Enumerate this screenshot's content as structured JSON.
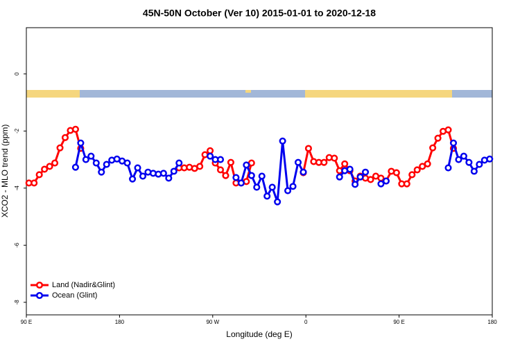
{
  "chart_data": {
    "type": "line",
    "title": "45N-50N October (Ver 10)   2015-01-01 to 2020-12-18",
    "x_label": "Longitude (deg E)",
    "y_label": "XCO2 - MLO trend (ppm)",
    "xlim": [
      90,
      540
    ],
    "xticks": [
      {
        "value": 90,
        "label": "90 E"
      },
      180,
      {
        "value": 270,
        "label": "90 W"
      },
      {
        "value": 360,
        "label": "0"
      },
      {
        "value": 450,
        "label": "90 E"
      },
      {
        "value": 540,
        "label": "180"
      }
    ],
    "ylim": [
      -8.44,
      1.62
    ],
    "yticks": [
      0,
      -2,
      -4,
      -6,
      -8
    ],
    "legend": "bottom-left",
    "series": [
      {
        "name": "Land (Nadir&Glint)",
        "color": "#ff0000",
        "x": [
          92.5,
          97.5,
          102.5,
          107.5,
          112.5,
          117.5,
          122.5,
          127.5,
          132.5,
          137.5,
          142.5,
          147.5,
          237.5,
          242.5,
          247.5,
          252.5,
          257.5,
          262.5,
          267.5,
          272.5,
          277.5,
          282.5,
          287.5,
          292.5,
          297.5,
          302.5,
          307.5,
          312.5,
          357.5,
          362.5,
          367.5,
          372.5,
          377.5,
          382.5,
          387.5,
          392.5,
          397.5,
          402.5,
          407.5,
          412.5,
          417.5,
          422.5,
          427.5,
          432.5,
          437.5,
          442.5,
          447.5,
          452.5,
          457.5,
          462.5,
          467.5,
          472.5,
          477.5,
          482.5,
          487.5,
          492.5,
          497.5,
          502.5
        ],
        "values": [
          -3.82,
          -3.82,
          -3.53,
          -3.34,
          -3.24,
          -3.12,
          -2.59,
          -2.23,
          -1.98,
          -1.94,
          -2.61,
          null,
          -3.29,
          -3.29,
          -3.27,
          -3.31,
          -3.24,
          -2.83,
          -2.69,
          -3.12,
          -3.36,
          -3.56,
          -3.1,
          -3.82,
          -3.82,
          -3.77,
          -3.12,
          null,
          -3.46,
          -2.61,
          -3.07,
          -3.1,
          -3.1,
          -2.93,
          -2.95,
          -3.39,
          -3.15,
          -3.39,
          -3.75,
          -3.58,
          -3.65,
          -3.7,
          -3.58,
          -3.65,
          -3.75,
          -3.41,
          -3.46,
          -3.85,
          -3.85,
          -3.53,
          -3.36,
          -3.24,
          -3.15,
          -2.59,
          -2.25,
          -2.01,
          -1.96,
          -2.61
        ]
      },
      {
        "name": "Ocean (Glint)",
        "color": "#0000ee",
        "x": [
          137.5,
          142.5,
          147.5,
          152.5,
          157.5,
          162.5,
          167.5,
          172.5,
          177.5,
          182.5,
          187.5,
          192.5,
          197.5,
          202.5,
          207.5,
          212.5,
          217.5,
          222.5,
          227.5,
          232.5,
          237.5,
          242.5,
          267.5,
          272.5,
          277.5,
          282.5,
          292.5,
          297.5,
          302.5,
          307.5,
          312.5,
          317.5,
          322.5,
          327.5,
          332.5,
          337.5,
          342.5,
          347.5,
          352.5,
          357.5,
          362.5,
          392.5,
          397.5,
          402.5,
          407.5,
          412.5,
          417.5,
          422.5,
          432.5,
          437.5,
          442.5,
          497.5,
          502.5,
          507.5,
          512.5,
          517.5,
          522.5,
          527.5,
          532.5,
          537.5
        ],
        "values": [
          -3.27,
          -2.42,
          -3.0,
          -2.88,
          -3.12,
          -3.44,
          -3.17,
          -3.02,
          -2.98,
          -3.05,
          -3.12,
          -3.68,
          -3.29,
          -3.58,
          -3.44,
          -3.48,
          -3.51,
          -3.48,
          -3.65,
          -3.41,
          -3.12,
          null,
          -2.88,
          -3.0,
          -3.0,
          null,
          -3.63,
          -3.82,
          -3.19,
          -3.56,
          -3.97,
          -3.58,
          -4.28,
          -3.97,
          -4.48,
          -2.35,
          -4.09,
          -3.94,
          -3.1,
          -3.44,
          null,
          -3.61,
          -3.39,
          -3.34,
          -3.87,
          -3.61,
          -3.44,
          null,
          -3.85,
          -3.75,
          null,
          -3.29,
          -2.42,
          -3.0,
          -2.88,
          -3.1,
          -3.41,
          -3.17,
          -3.02,
          -2.98
        ]
      }
    ]
  }
}
